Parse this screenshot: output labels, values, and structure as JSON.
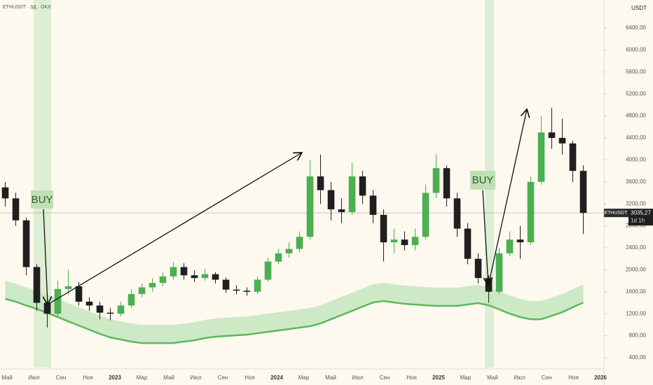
{
  "chart_data": {
    "type": "candlestick",
    "title": "ETHUSDT · 3Д · OKX",
    "currency": "USDT",
    "symbol": "ETHUSDT",
    "countdown": "1d 1h",
    "up_color": "#4caf50",
    "down_color": "#1f1f1f",
    "background": "#fdf9ef",
    "open": [
      3500,
      3300,
      2900,
      2050,
      1400,
      1200,
      1650,
      1700,
      1420,
      1350,
      1220,
      1200,
      1350,
      1560,
      1680,
      1760,
      1880,
      2050,
      1900,
      1850,
      1920,
      1820,
      1640,
      1620,
      1600,
      1820,
      2150,
      2300,
      2380,
      2600,
      3700,
      3450,
      3100,
      3050,
      3700,
      3350,
      3000,
      2500,
      2550,
      2450,
      2600,
      3400,
      3850,
      3300,
      2750,
      2200,
      1850,
      1600,
      2300,
      2550,
      2500,
      3600,
      4500,
      4400,
      4300,
      3800
    ],
    "high": [
      3600,
      3400,
      2950,
      2100,
      1550,
      1800,
      2000,
      1780,
      1500,
      1420,
      1300,
      1420,
      1650,
      1750,
      1850,
      1950,
      2140,
      2120,
      1990,
      2020,
      1960,
      1860,
      1720,
      1680,
      1880,
      2220,
      2380,
      2500,
      2700,
      4000,
      4100,
      3600,
      3300,
      3950,
      3800,
      3450,
      3100,
      2750,
      2700,
      2750,
      3550,
      4100,
      3900,
      3400,
      2850,
      2300,
      1900,
      2400,
      2700,
      2800,
      3700,
      4800,
      4950,
      4750,
      4350,
      3900
    ],
    "low": [
      3150,
      2800,
      1900,
      1250,
      950,
      1150,
      1550,
      1350,
      1250,
      1100,
      1080,
      1150,
      1300,
      1500,
      1600,
      1700,
      1820,
      1820,
      1780,
      1800,
      1750,
      1580,
      1550,
      1530,
      1560,
      1780,
      2100,
      2220,
      2320,
      2550,
      3200,
      2900,
      2850,
      3000,
      3200,
      2850,
      2150,
      2300,
      2350,
      2350,
      2550,
      3300,
      3150,
      2600,
      2100,
      1750,
      1400,
      1550,
      2250,
      2200,
      2450,
      3550,
      4200,
      4100,
      3600,
      2650
    ],
    "close": [
      3300,
      2900,
      2050,
      1400,
      1200,
      1650,
      1700,
      1420,
      1350,
      1220,
      1200,
      1350,
      1560,
      1680,
      1760,
      1880,
      2050,
      1900,
      1850,
      1920,
      1820,
      1640,
      1620,
      1600,
      1820,
      2150,
      2300,
      2380,
      2600,
      3700,
      3450,
      3100,
      3050,
      3700,
      3350,
      3000,
      2500,
      2550,
      2450,
      2600,
      3400,
      3850,
      3300,
      2750,
      2200,
      1850,
      1600,
      2300,
      2550,
      2500,
      3600,
      4500,
      4400,
      4300,
      3800,
      3035.27
    ],
    "indicator": {
      "color": "#5cb85c",
      "band_color": "#c6e6bd",
      "values": [
        1470,
        1420,
        1350,
        1290,
        1215,
        1140,
        1060,
        986,
        910,
        833,
        770,
        731,
        693,
        667,
        667,
        667,
        667,
        693,
        718,
        757,
        782,
        795,
        808,
        820,
        846,
        871,
        897,
        922,
        948,
        973,
        1024,
        1100,
        1177,
        1253,
        1330,
        1406,
        1432,
        1406,
        1381,
        1368,
        1355,
        1343,
        1343,
        1343,
        1368,
        1394,
        1355,
        1279,
        1202,
        1139,
        1100,
        1100,
        1164,
        1228,
        1317,
        1406
      ]
    },
    "last_price": {
      "value": 3035.27,
      "label": "3035,27"
    },
    "x_labels": [
      "Май",
      "Июл",
      "Сен",
      "Ноя",
      "2023",
      "Мар",
      "Май",
      "Июл",
      "Сен",
      "Ноя",
      "2024",
      "Мар",
      "Май",
      "Июл",
      "Сен",
      "Ноя",
      "2025",
      "Мар",
      "Май",
      "Июл",
      "Сен",
      "Ноя",
      "2026"
    ],
    "ylim": [
      222,
      6910
    ],
    "yticks": [
      {
        "value": 400,
        "label": "400,00"
      },
      {
        "value": 800,
        "label": "800,00"
      },
      {
        "value": 1200,
        "label": "1200,00"
      },
      {
        "value": 1600,
        "label": "1600,00"
      },
      {
        "value": 2000,
        "label": "2000,00"
      },
      {
        "value": 2400,
        "label": "2400,00"
      },
      {
        "value": 2800,
        "label": "2800,00"
      },
      {
        "value": 3200,
        "label": "3200,00"
      },
      {
        "value": 3600,
        "label": "3600,00"
      },
      {
        "value": 4000,
        "label": "4000,00"
      },
      {
        "value": 4400,
        "label": "4400,00"
      },
      {
        "value": 4800,
        "label": "4800,00"
      },
      {
        "value": 5200,
        "label": "5200,00"
      },
      {
        "value": 5600,
        "label": "5600,00"
      },
      {
        "value": 6000,
        "label": "6000,00"
      },
      {
        "value": 6400,
        "label": "6400,00"
      }
    ],
    "annotations": [
      "BUY",
      "BUY"
    ]
  }
}
